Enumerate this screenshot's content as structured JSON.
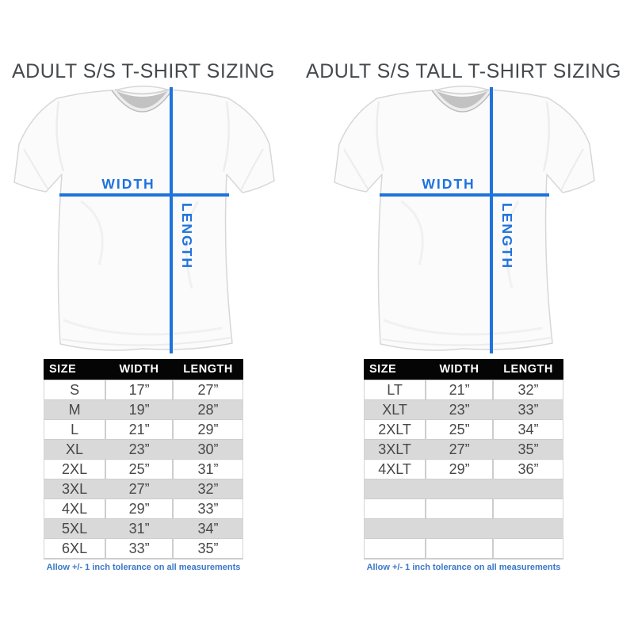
{
  "colors": {
    "accent_blue": "#1e73dd",
    "footnote_blue": "#3a77c8",
    "header_bg": "#050505",
    "header_text": "#ffffff",
    "row_gray": "#d9d9d9",
    "grid_gray": "#cdcdcd",
    "cell_text": "#474747",
    "title_text": "#46494c"
  },
  "panels": [
    {
      "title": "ADULT S/S T-SHIRT SIZING",
      "diagram": {
        "width_label": "WIDTH",
        "length_label": "LENGTH"
      },
      "table": {
        "headers": [
          "SIZE",
          "WIDTH",
          "LENGTH"
        ],
        "rows": [
          [
            "S",
            "17”",
            "27”"
          ],
          [
            "M",
            "19”",
            "28”"
          ],
          [
            "L",
            "21”",
            "29”"
          ],
          [
            "XL",
            "23”",
            "30”"
          ],
          [
            "2XL",
            "25”",
            "31”"
          ],
          [
            "3XL",
            "27”",
            "32”"
          ],
          [
            "4XL",
            "29”",
            "33”"
          ],
          [
            "5XL",
            "31”",
            "34”"
          ],
          [
            "6XL",
            "33”",
            "35”"
          ]
        ],
        "empty_rows": 0
      },
      "footnote": "Allow +/- 1 inch tolerance on all measurements"
    },
    {
      "title": "ADULT S/S TALL T-SHIRT SIZING",
      "diagram": {
        "width_label": "WIDTH",
        "length_label": "LENGTH"
      },
      "table": {
        "headers": [
          "SIZE",
          "WIDTH",
          "LENGTH"
        ],
        "rows": [
          [
            "LT",
            "21”",
            "32”"
          ],
          [
            "XLT",
            "23”",
            "33”"
          ],
          [
            "2XLT",
            "25”",
            "34”"
          ],
          [
            "3XLT",
            "27”",
            "35”"
          ],
          [
            "4XLT",
            "29”",
            "36”"
          ]
        ],
        "empty_rows": 4
      },
      "footnote": "Allow +/- 1 inch tolerance on all measurements"
    }
  ],
  "chart_data": [
    {
      "type": "table",
      "title": "ADULT S/S T-SHIRT SIZING",
      "columns": [
        "SIZE",
        "WIDTH",
        "LENGTH"
      ],
      "rows": [
        [
          "S",
          "17”",
          "27”"
        ],
        [
          "M",
          "19”",
          "28”"
        ],
        [
          "L",
          "21”",
          "29”"
        ],
        [
          "XL",
          "23”",
          "30”"
        ],
        [
          "2XL",
          "25”",
          "31”"
        ],
        [
          "3XL",
          "27”",
          "32”"
        ],
        [
          "4XL",
          "29”",
          "33”"
        ],
        [
          "5XL",
          "31”",
          "34”"
        ],
        [
          "6XL",
          "33”",
          "35”"
        ]
      ],
      "note": "Allow +/- 1 inch tolerance on all measurements"
    },
    {
      "type": "table",
      "title": "ADULT S/S TALL T-SHIRT SIZING",
      "columns": [
        "SIZE",
        "WIDTH",
        "LENGTH"
      ],
      "rows": [
        [
          "LT",
          "21”",
          "32”"
        ],
        [
          "XLT",
          "23”",
          "33”"
        ],
        [
          "2XLT",
          "25”",
          "34”"
        ],
        [
          "3XLT",
          "27”",
          "35”"
        ],
        [
          "4XLT",
          "29”",
          "36”"
        ]
      ],
      "note": "Allow +/- 1 inch tolerance on all measurements"
    }
  ]
}
